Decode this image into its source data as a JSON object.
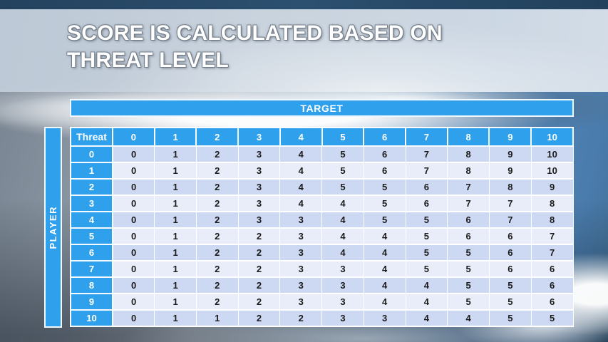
{
  "slide": {
    "title_line1": "SCORE IS CALCULATED BASED ON",
    "title_line2": "THREAT LEVEL"
  },
  "table": {
    "target_label": "TARGET",
    "player_label": "PLAYER",
    "corner_label": "Threat",
    "columns": [
      "0",
      "1",
      "2",
      "3",
      "4",
      "5",
      "6",
      "7",
      "8",
      "9",
      "10"
    ],
    "rows": [
      {
        "threat": "0",
        "values": [
          0,
          1,
          2,
          3,
          4,
          5,
          6,
          7,
          8,
          9,
          10
        ]
      },
      {
        "threat": "1",
        "values": [
          0,
          1,
          2,
          3,
          4,
          5,
          6,
          7,
          8,
          9,
          10
        ]
      },
      {
        "threat": "2",
        "values": [
          0,
          1,
          2,
          3,
          4,
          5,
          5,
          6,
          7,
          8,
          9
        ]
      },
      {
        "threat": "3",
        "values": [
          0,
          1,
          2,
          3,
          4,
          4,
          5,
          6,
          7,
          7,
          8
        ]
      },
      {
        "threat": "4",
        "values": [
          0,
          1,
          2,
          3,
          3,
          4,
          5,
          5,
          6,
          7,
          8
        ]
      },
      {
        "threat": "5",
        "values": [
          0,
          1,
          2,
          2,
          3,
          4,
          4,
          5,
          6,
          6,
          7
        ]
      },
      {
        "threat": "6",
        "values": [
          0,
          1,
          2,
          2,
          3,
          4,
          4,
          5,
          5,
          6,
          7
        ]
      },
      {
        "threat": "7",
        "values": [
          0,
          1,
          2,
          2,
          3,
          3,
          4,
          5,
          5,
          6,
          6
        ]
      },
      {
        "threat": "8",
        "values": [
          0,
          1,
          2,
          2,
          3,
          3,
          4,
          4,
          5,
          5,
          6
        ]
      },
      {
        "threat": "9",
        "values": [
          0,
          1,
          2,
          2,
          3,
          3,
          4,
          4,
          5,
          5,
          6
        ]
      },
      {
        "threat": "10",
        "values": [
          0,
          1,
          1,
          2,
          2,
          3,
          3,
          4,
          4,
          5,
          5
        ]
      }
    ]
  },
  "colors": {
    "accent_blue": "#2FA1EC",
    "row_even": "#CDD8F2",
    "row_odd": "#E9EDF9",
    "cell_text": "#1B1B1B",
    "header_text": "#FFFFFF"
  }
}
